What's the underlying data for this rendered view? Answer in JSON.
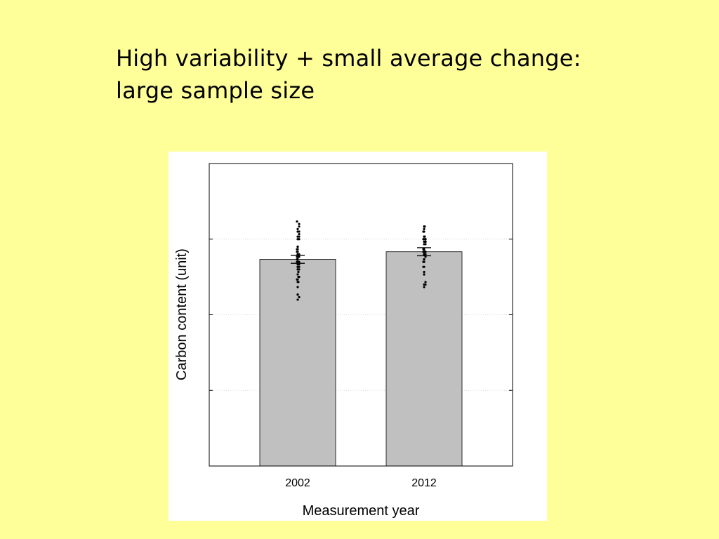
{
  "slide": {
    "title_line1": "High variability + small average change:",
    "title_line2": "large sample size",
    "background_color": "#ffff99"
  },
  "chart_data": {
    "type": "bar",
    "categories": [
      "2002",
      "2012"
    ],
    "values": [
      4.1,
      4.25
    ],
    "errors": [
      0.08,
      0.08
    ],
    "individual_points": [
      [
        4.2,
        4.8,
        4.1,
        4.3,
        4.15,
        3.9,
        4.05,
        4.6,
        4.15,
        3.95,
        4.0,
        4.0,
        3.4,
        3.85,
        3.3,
        3.4,
        4.5,
        3.8,
        4.1,
        4.05,
        4.7,
        4.35,
        3.75,
        4.25,
        3.9,
        4.55,
        4.2,
        4.35,
        3.65,
        4.25,
        3.55,
        3.95,
        4.65,
        4.85,
        3.9,
        3.7,
        3.95,
        4.2,
        4.05,
        4.15,
        4.75,
        4.5,
        3.65,
        3.75,
        4.15,
        4.3,
        4.65,
        4.55,
        3.7,
        3.35
      ],
      [
        4.05,
        4.45,
        3.95,
        4.05,
        4.45,
        3.55,
        4.5,
        4.5,
        4.25,
        4.1,
        4.4,
        4.3,
        4.7,
        4.75,
        3.8,
        4.2,
        3.6,
        4.2,
        4.5,
        4.45,
        4.25,
        3.85,
        4.25,
        4.3,
        3.6,
        4.15,
        3.8,
        4.45,
        4.25,
        4.05,
        4.2,
        3.65,
        4.25,
        4.65,
        4.5,
        4.1,
        4.55,
        4.45,
        3.95,
        4.1,
        4.2,
        4.65,
        4.4,
        4.55,
        4.55,
        4.75,
        4.45,
        4.75,
        4.65,
        4.25
      ]
    ],
    "bar_color": "#c0c0c0",
    "xlabel": "Measurement year",
    "ylabel": "Carbon content (unit)",
    "ylim": [
      0,
      6
    ],
    "yticks": [
      1.5,
      3,
      4.5
    ],
    "show_ytick_labels": false,
    "grid": "horizontal dotted",
    "legend": "none"
  }
}
